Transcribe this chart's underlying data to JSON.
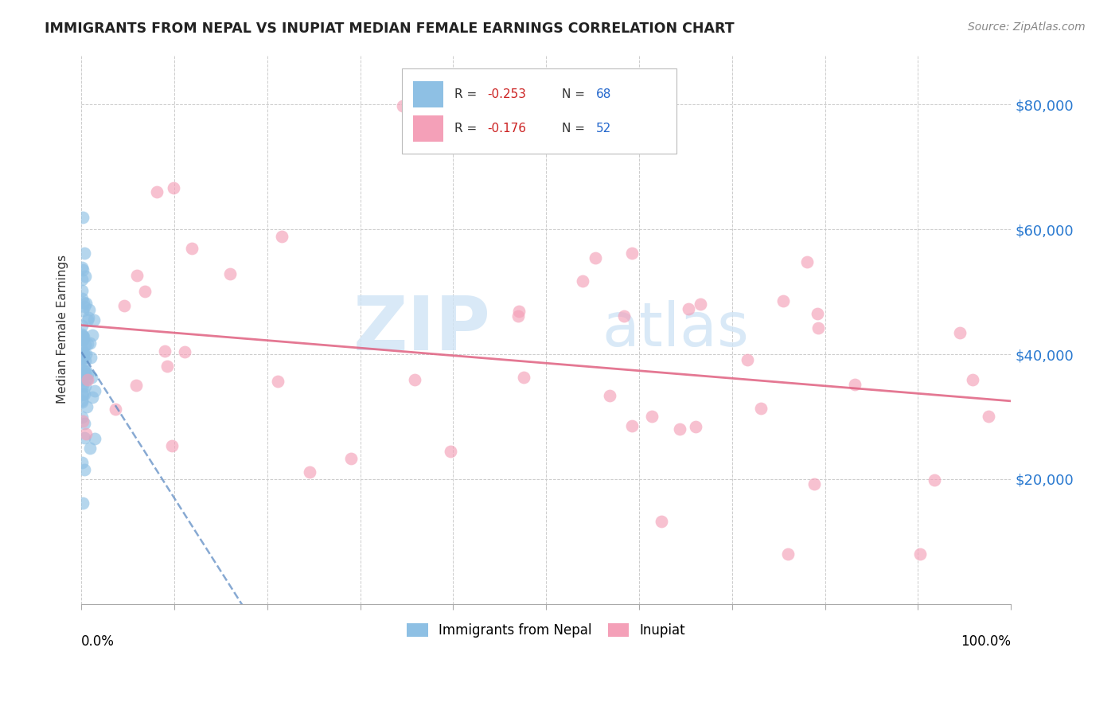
{
  "title": "IMMIGRANTS FROM NEPAL VS INUPIAT MEDIAN FEMALE EARNINGS CORRELATION CHART",
  "source": "Source: ZipAtlas.com",
  "ylabel": "Median Female Earnings",
  "ytick_labels": [
    "$20,000",
    "$40,000",
    "$60,000",
    "$80,000"
  ],
  "ytick_values": [
    20000,
    40000,
    60000,
    80000
  ],
  "ylim": [
    0,
    88000
  ],
  "xlim": [
    0,
    1.0
  ],
  "legend_R_nepal": "-0.253",
  "legend_N_nepal": "68",
  "legend_R_inupiat": "-0.176",
  "legend_N_inupiat": "52",
  "nepal_color": "#8ec0e4",
  "inupiat_color": "#f4a0b8",
  "nepal_line_color": "#5585c0",
  "inupiat_line_color": "#e06080",
  "background_color": "#ffffff",
  "watermark_zip": "ZIP",
  "watermark_atlas": "atlas",
  "nepal_seed": 42,
  "inupiat_seed": 99
}
